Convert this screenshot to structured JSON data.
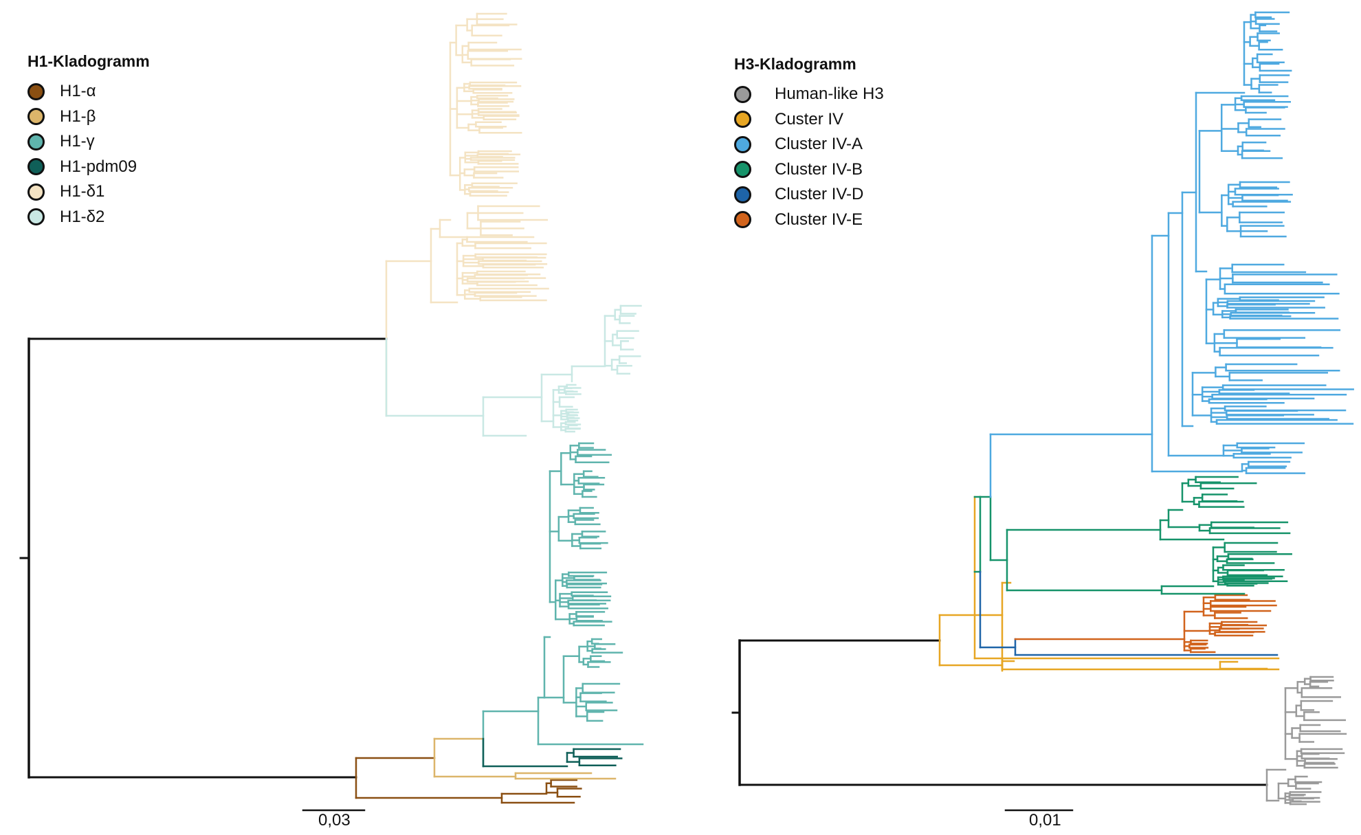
{
  "chart_data": [
    {
      "type": "tree",
      "title": "H1-Kladogramm",
      "legend": [
        {
          "label": "H1-α",
          "color": "#8a4f12"
        },
        {
          "label": "H1-β",
          "color": "#dcb56a"
        },
        {
          "label": "H1-γ",
          "color": "#5fb4ad"
        },
        {
          "label": "H1-pdm09",
          "color": "#0f5f58"
        },
        {
          "label": "H1-δ1",
          "color": "#f4e3c3"
        },
        {
          "label": "H1-δ2",
          "color": "#c9e8e4"
        }
      ],
      "scale_bar": "0,03",
      "legend_position": "top-left"
    },
    {
      "type": "tree",
      "title": "H3-Kladogramm",
      "legend": [
        {
          "label": "Human-like H3",
          "color": "#9a9a9a"
        },
        {
          "label": "Custer IV",
          "color": "#e7a623"
        },
        {
          "label": "Cluster IV-A",
          "color": "#4ea9e0"
        },
        {
          "label": "Cluster IV-B",
          "color": "#16936a"
        },
        {
          "label": "Cluster IV-D",
          "color": "#1e64a8"
        },
        {
          "label": "Cluster IV-E",
          "color": "#d1631c"
        }
      ],
      "scale_bar": "0,01",
      "legend_position": "top-left"
    }
  ],
  "colors": {
    "root": "#111111"
  }
}
